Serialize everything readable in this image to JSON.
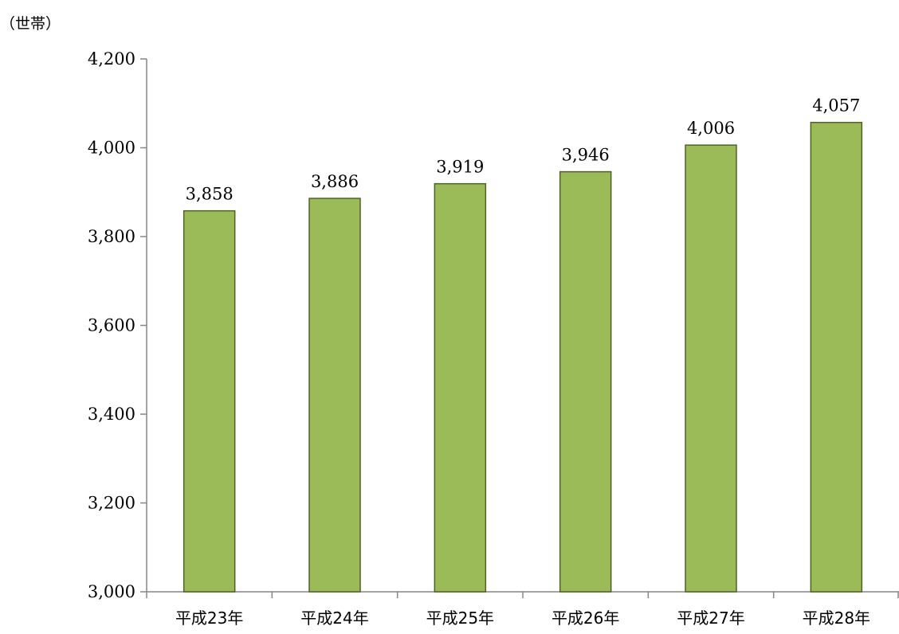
{
  "chart_data": {
    "type": "bar",
    "unit_label": "（世帯）",
    "categories": [
      "平成23年",
      "平成24年",
      "平成25年",
      "平成26年",
      "平成27年",
      "平成28年"
    ],
    "values": [
      3858,
      3886,
      3919,
      3946,
      4006,
      4057
    ],
    "data_labels": [
      "3,858",
      "3,886",
      "3,919",
      "3,946",
      "4,006",
      "4,057"
    ],
    "y_ticks": [
      "3,000",
      "3,200",
      "3,400",
      "3,600",
      "3,800",
      "4,000",
      "4,200"
    ],
    "y_tick_values": [
      3000,
      3200,
      3400,
      3600,
      3800,
      4000,
      4200
    ],
    "ylim": [
      3000,
      4200
    ],
    "grid": false,
    "legend": "none",
    "colors": {
      "bar_fill": "#9bbb59",
      "bar_stroke": "#4f6228",
      "axis": "#868686"
    }
  }
}
